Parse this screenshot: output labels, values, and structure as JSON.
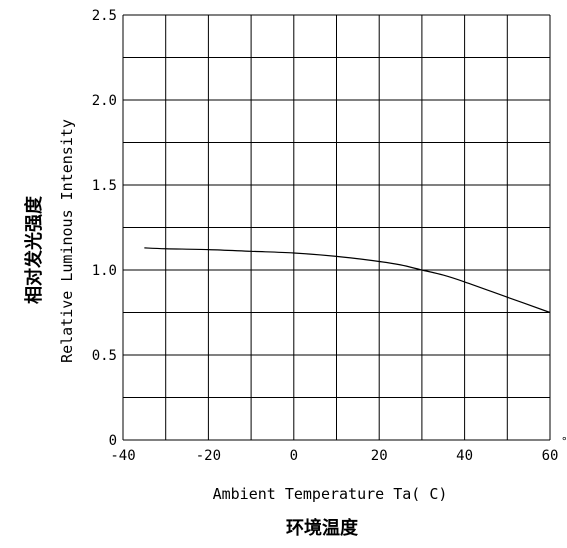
{
  "chart_data": {
    "type": "line",
    "xlabel": "Ambient Temperature Ta( C)",
    "xlabel_cn": "环境温度",
    "ylabel": "Relative Luminous Intensity",
    "ylabel_cn": "相对发光强度",
    "x_unit_mark": "°",
    "xlim": [
      -40,
      60
    ],
    "ylim": [
      0,
      2.5
    ],
    "x_ticks": [
      -40,
      -20,
      0,
      20,
      40,
      60
    ],
    "x_tick_labels": [
      "-40",
      "-20",
      "0",
      "20",
      "40",
      "60"
    ],
    "y_ticks": [
      0,
      0.5,
      1.0,
      1.5,
      2.0,
      2.5
    ],
    "y_tick_labels": [
      "0",
      "0.5",
      "1.0",
      "1.5",
      "2.0",
      "2.5"
    ],
    "grid": true,
    "x_grid_step": 10,
    "y_grid_step": 0.25,
    "series": [
      {
        "x": [
          -35,
          -30,
          -20,
          -10,
          0,
          10,
          20,
          25,
          30,
          35,
          40,
          50,
          60
        ],
        "y": [
          1.13,
          1.125,
          1.12,
          1.11,
          1.1,
          1.08,
          1.05,
          1.03,
          1.0,
          0.97,
          0.93,
          0.84,
          0.75
        ]
      }
    ]
  }
}
